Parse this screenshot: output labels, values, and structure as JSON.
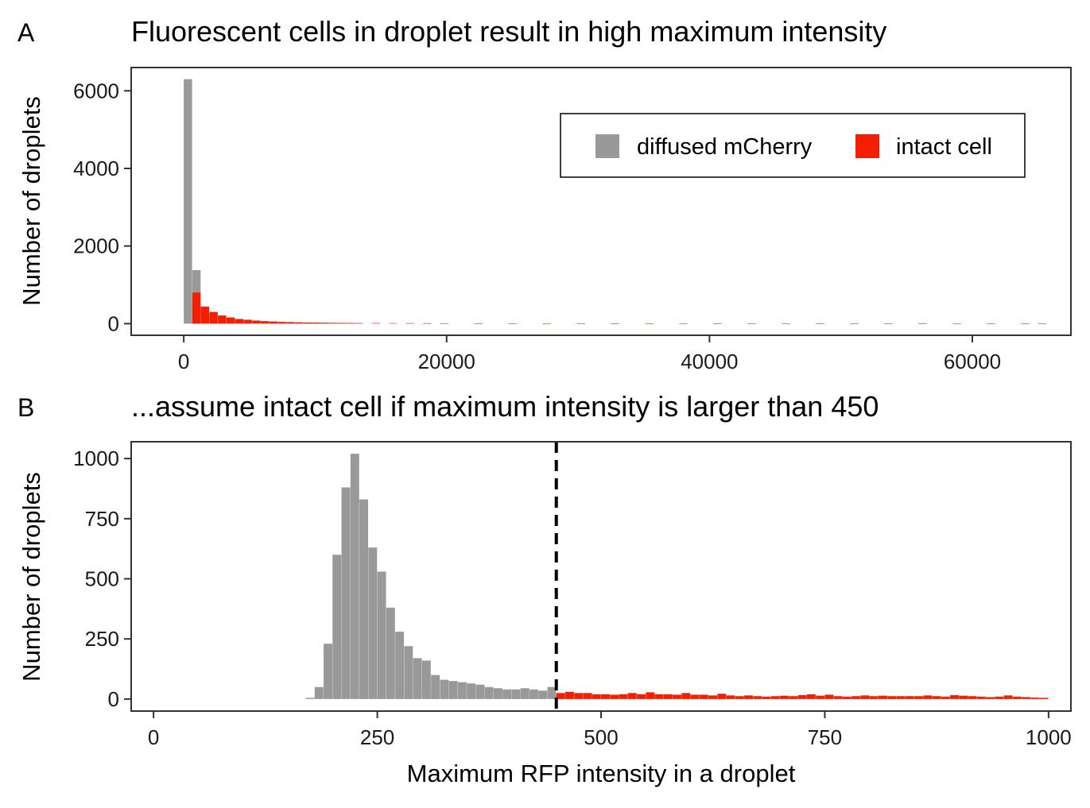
{
  "colors": {
    "diffused": "#999999",
    "intact": "#f31f00",
    "frame": "#333333",
    "cutoff": "#000000"
  },
  "chart_data": [
    {
      "type": "bar",
      "panel_label": "A",
      "title": "Fluorescent cells in droplet result in high maximum intensity",
      "xlabel": "",
      "ylabel": "Number of droplets",
      "xlim": [
        -4000,
        67500
      ],
      "ylim": [
        -300,
        6600
      ],
      "xticks": [
        "0",
        "20000",
        "40000",
        "60000"
      ],
      "yticks": [
        "0",
        "2000",
        "4000",
        "6000"
      ],
      "grid": false,
      "legend": {
        "placement": "top-right",
        "entries": [
          {
            "label": "diffused mCherry",
            "color_key": "diffused"
          },
          {
            "label": "intact cell",
            "color_key": "intact"
          }
        ]
      },
      "bin_width": 650,
      "series": [
        {
          "name": "diffused mCherry",
          "color_key": "diffused",
          "x": [
            0,
            650
          ],
          "values": [
            6300,
            1380
          ]
        },
        {
          "name": "intact cell",
          "color_key": "intact",
          "x": [
            650,
            1300,
            1950,
            2600,
            3250,
            3900,
            4550,
            5200,
            5850,
            6500,
            7150,
            7800,
            8450,
            9100,
            9750,
            10400,
            11050,
            11700,
            12350,
            13000,
            14300,
            15600,
            16900,
            18200,
            19500,
            22100,
            24700,
            27300,
            29900,
            32500,
            35100,
            37700,
            40300,
            42900,
            45500,
            48100,
            50700,
            53300,
            55900,
            58500,
            61100,
            63700,
            65000
          ],
          "values": [
            800,
            440,
            300,
            210,
            160,
            120,
            100,
            80,
            65,
            55,
            45,
            40,
            35,
            30,
            28,
            25,
            22,
            20,
            18,
            16,
            14,
            12,
            11,
            10,
            9,
            8,
            7,
            6,
            6,
            5,
            5,
            5,
            4,
            4,
            4,
            4,
            3,
            3,
            3,
            3,
            3,
            3,
            3
          ]
        }
      ]
    },
    {
      "type": "bar",
      "panel_label": "B",
      "title": "...assume intact cell if maximum intensity is larger than 450",
      "xlabel": "Maximum RFP intensity in a droplet",
      "ylabel": "Number of droplets",
      "xlim": [
        -25,
        1025
      ],
      "ylim": [
        -50,
        1070
      ],
      "xticks": [
        "0",
        "250",
        "500",
        "750",
        "1000"
      ],
      "yticks": [
        "0",
        "250",
        "500",
        "750",
        "1000"
      ],
      "grid": false,
      "cutoff": 450,
      "bin_width": 10,
      "series": [
        {
          "name": "diffused mCherry",
          "color_key": "diffused",
          "x": [
            170,
            180,
            190,
            200,
            210,
            220,
            230,
            240,
            250,
            260,
            270,
            280,
            290,
            300,
            310,
            320,
            330,
            340,
            350,
            360,
            370,
            380,
            390,
            400,
            410,
            420,
            430,
            440
          ],
          "values": [
            5,
            50,
            230,
            600,
            880,
            1020,
            830,
            630,
            530,
            380,
            280,
            220,
            170,
            160,
            100,
            80,
            75,
            70,
            65,
            60,
            50,
            45,
            40,
            40,
            45,
            40,
            35,
            50
          ]
        },
        {
          "name": "intact cell",
          "color_key": "intact",
          "x": [
            450,
            460,
            470,
            480,
            490,
            500,
            510,
            520,
            530,
            540,
            550,
            560,
            570,
            580,
            590,
            600,
            610,
            620,
            630,
            640,
            650,
            660,
            670,
            680,
            690,
            700,
            710,
            720,
            730,
            740,
            750,
            760,
            770,
            780,
            790,
            800,
            810,
            820,
            830,
            840,
            850,
            860,
            870,
            880,
            890,
            900,
            910,
            920,
            930,
            940,
            950,
            960,
            970,
            980,
            990
          ],
          "values": [
            25,
            30,
            25,
            25,
            20,
            20,
            18,
            20,
            25,
            20,
            28,
            20,
            20,
            18,
            25,
            18,
            18,
            15,
            22,
            15,
            12,
            15,
            12,
            10,
            12,
            14,
            12,
            16,
            20,
            14,
            18,
            12,
            10,
            12,
            15,
            12,
            14,
            12,
            12,
            12,
            12,
            15,
            12,
            10,
            16,
            14,
            12,
            10,
            8,
            10,
            15,
            10,
            8,
            6,
            5
          ]
        }
      ]
    }
  ]
}
